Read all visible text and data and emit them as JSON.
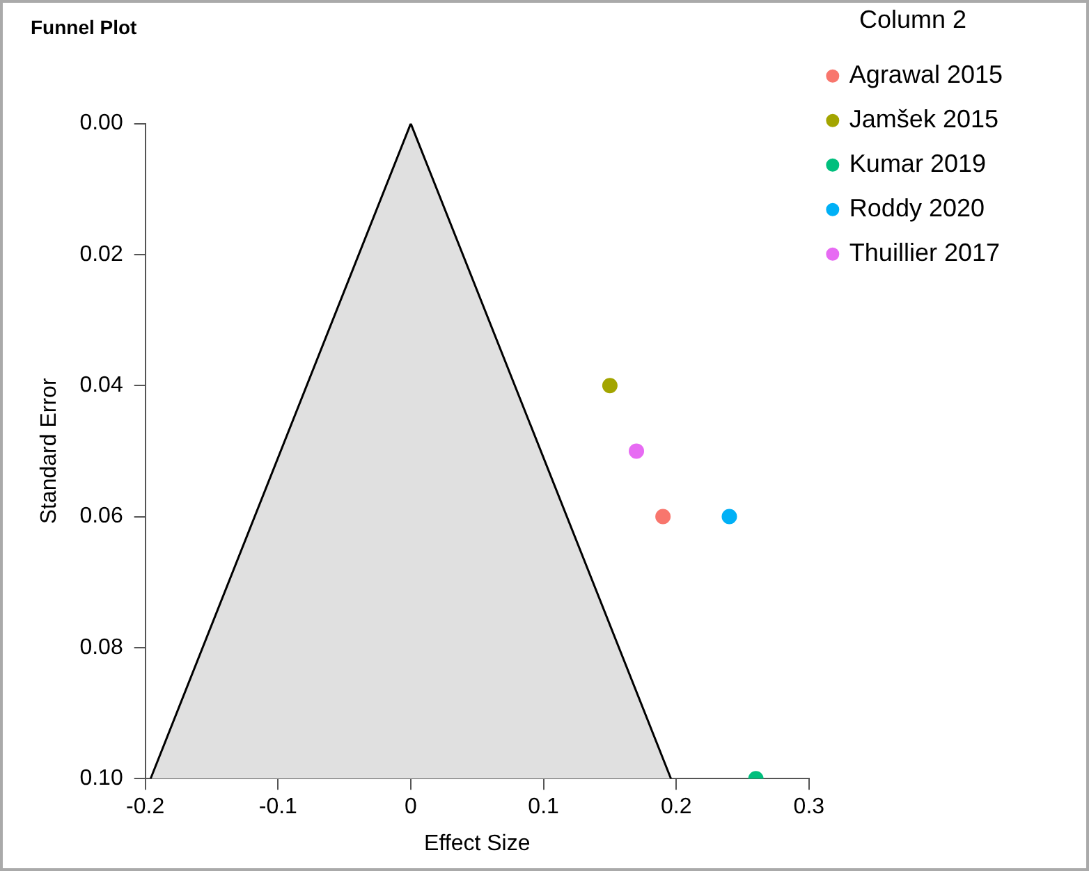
{
  "chart_data": {
    "type": "scatter",
    "title": "Funnel Plot",
    "xlabel": "Effect Size",
    "ylabel": "Standard Error",
    "legend_title": "Column 2",
    "legend": "right",
    "marker": "circle",
    "grid": false,
    "xlim": [
      -0.2,
      0.3
    ],
    "xticks": [
      -0.2,
      -0.1,
      0,
      0.1,
      0.2,
      0.3
    ],
    "ylim": [
      0.1,
      0
    ],
    "yticks": [
      {
        "value": 0,
        "label": "0.00"
      },
      0.02,
      0.04,
      0.06,
      0.08,
      {
        "value": 0.1,
        "label": "0.10"
      }
    ],
    "series": [
      {
        "type": "area",
        "marker": "none",
        "color": "#e0e0e0",
        "x": [
          -0.196,
          0,
          0.196
        ],
        "values": [
          0.1,
          0,
          0.1
        ]
      },
      {
        "name": "Agrawal 2015",
        "color": "#f8766d",
        "x": [
          0.19
        ],
        "values": [
          0.06
        ]
      },
      {
        "name": "Jamšek 2015",
        "color": "#a3a500",
        "x": [
          0.15
        ],
        "values": [
          0.04
        ]
      },
      {
        "name": "Kumar 2019",
        "color": "#00bf7d",
        "x": [
          0.26
        ],
        "values": [
          0.1
        ]
      },
      {
        "name": "Roddy 2020",
        "color": "#00b0f6",
        "x": [
          0.24
        ],
        "values": [
          0.06
        ]
      },
      {
        "name": "Thuillier 2017",
        "color": "#e76bf3",
        "x": [
          0.17
        ],
        "values": [
          0.05
        ]
      }
    ]
  }
}
